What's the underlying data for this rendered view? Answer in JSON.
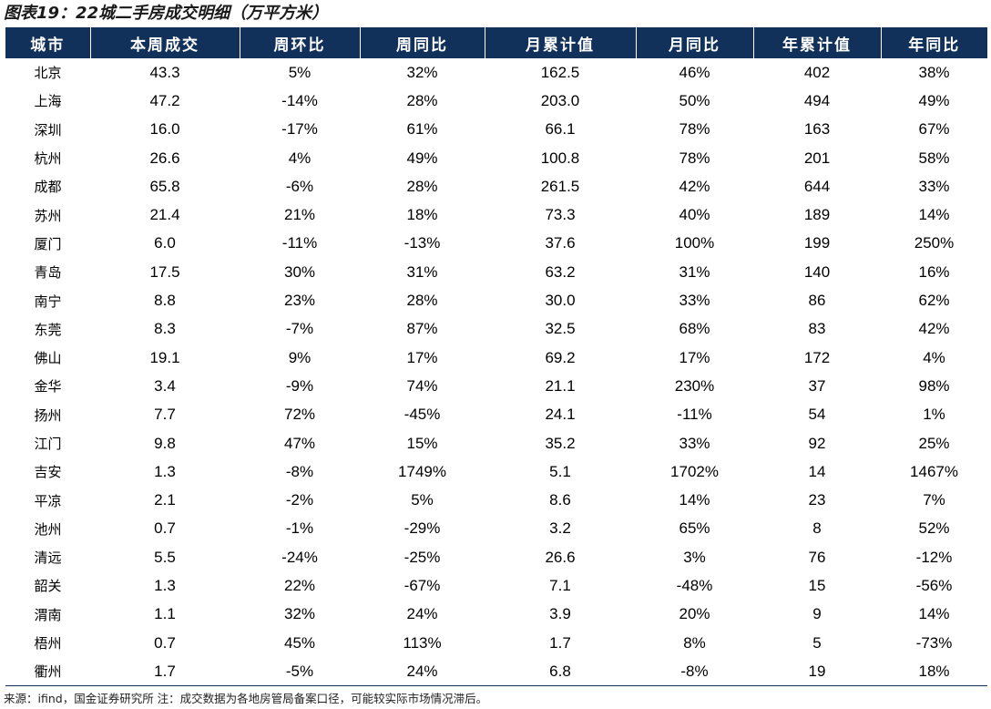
{
  "title": "图表19：22城二手房成交明细（万平方米）",
  "columns": [
    "城市",
    "本周成交",
    "周环比",
    "周同比",
    "月累计值",
    "月同比",
    "年累计值",
    "年同比"
  ],
  "rows": [
    [
      "北京",
      "43.3",
      "5%",
      "32%",
      "162.5",
      "46%",
      "402",
      "38%"
    ],
    [
      "上海",
      "47.2",
      "-14%",
      "28%",
      "203.0",
      "50%",
      "494",
      "49%"
    ],
    [
      "深圳",
      "16.0",
      "-17%",
      "61%",
      "66.1",
      "78%",
      "163",
      "67%"
    ],
    [
      "杭州",
      "26.6",
      "4%",
      "49%",
      "100.8",
      "78%",
      "201",
      "58%"
    ],
    [
      "成都",
      "65.8",
      "-6%",
      "28%",
      "261.5",
      "42%",
      "644",
      "33%"
    ],
    [
      "苏州",
      "21.4",
      "21%",
      "18%",
      "73.3",
      "40%",
      "189",
      "14%"
    ],
    [
      "厦门",
      "6.0",
      "-11%",
      "-13%",
      "37.6",
      "100%",
      "199",
      "250%"
    ],
    [
      "青岛",
      "17.5",
      "30%",
      "31%",
      "63.2",
      "31%",
      "140",
      "16%"
    ],
    [
      "南宁",
      "8.8",
      "23%",
      "28%",
      "30.0",
      "33%",
      "86",
      "62%"
    ],
    [
      "东莞",
      "8.3",
      "-7%",
      "87%",
      "32.5",
      "68%",
      "83",
      "42%"
    ],
    [
      "佛山",
      "19.1",
      "9%",
      "17%",
      "69.2",
      "17%",
      "172",
      "4%"
    ],
    [
      "金华",
      "3.4",
      "-9%",
      "74%",
      "21.1",
      "230%",
      "37",
      "98%"
    ],
    [
      "扬州",
      "7.7",
      "72%",
      "-45%",
      "24.1",
      "-11%",
      "54",
      "1%"
    ],
    [
      "江门",
      "9.8",
      "47%",
      "15%",
      "35.2",
      "33%",
      "92",
      "25%"
    ],
    [
      "吉安",
      "1.3",
      "-8%",
      "1749%",
      "5.1",
      "1702%",
      "14",
      "1467%"
    ],
    [
      "平凉",
      "2.1",
      "-2%",
      "5%",
      "8.6",
      "14%",
      "23",
      "7%"
    ],
    [
      "池州",
      "0.7",
      "-1%",
      "-29%",
      "3.2",
      "65%",
      "8",
      "52%"
    ],
    [
      "清远",
      "5.5",
      "-24%",
      "-25%",
      "26.6",
      "3%",
      "76",
      "-12%"
    ],
    [
      "韶关",
      "1.3",
      "22%",
      "-67%",
      "7.1",
      "-48%",
      "15",
      "-56%"
    ],
    [
      "渭南",
      "1.1",
      "32%",
      "24%",
      "3.9",
      "20%",
      "9",
      "14%"
    ],
    [
      "梧州",
      "0.7",
      "45%",
      "113%",
      "1.7",
      "8%",
      "5",
      "-73%"
    ],
    [
      "衢州",
      "1.7",
      "-5%",
      "24%",
      "6.8",
      "-8%",
      "19",
      "18%"
    ]
  ],
  "source": "来源：ifind，国金证券研究所 注：成交数据为各地房管局备案口径，可能较实际市场情况滞后。",
  "colors": {
    "header_bg": "#11305a",
    "header_text": "#ffffff"
  }
}
